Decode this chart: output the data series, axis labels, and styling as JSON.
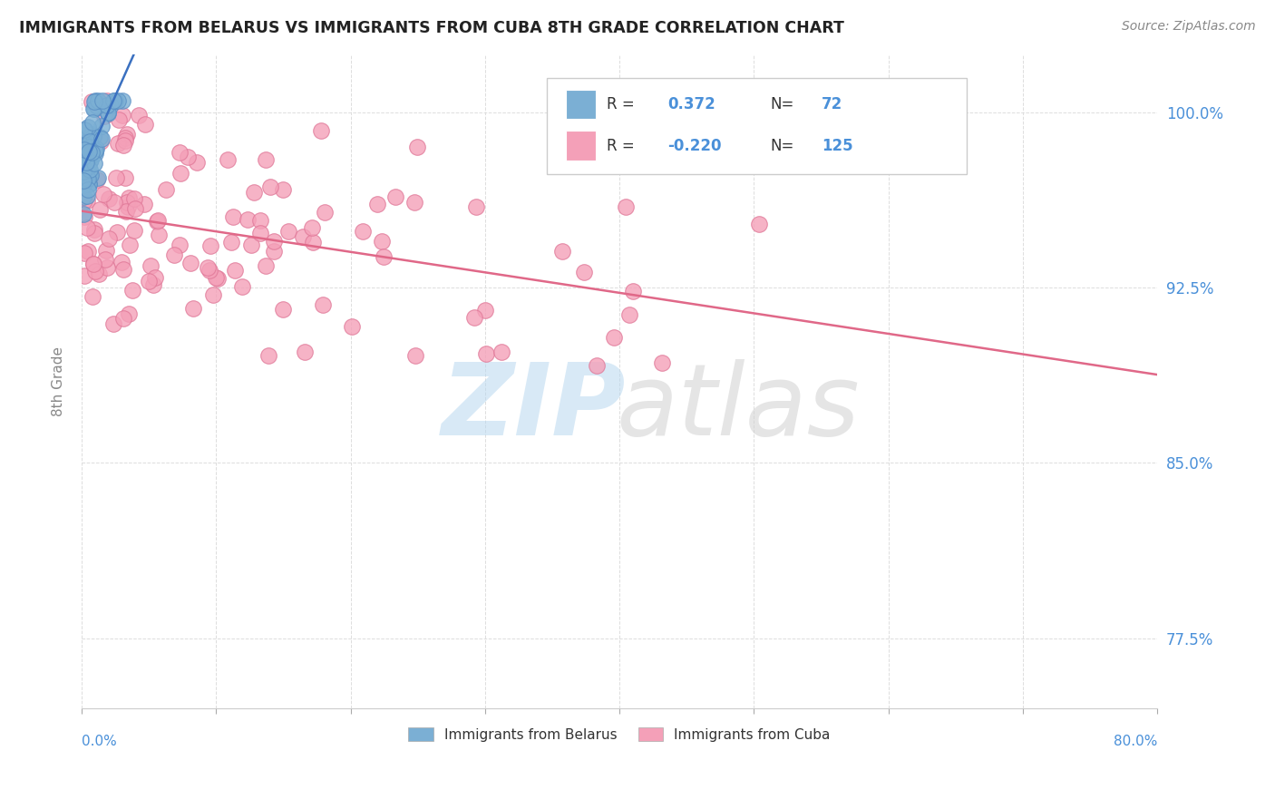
{
  "title": "IMMIGRANTS FROM BELARUS VS IMMIGRANTS FROM CUBA 8TH GRADE CORRELATION CHART",
  "source": "Source: ZipAtlas.com",
  "ylabel": "8th Grade",
  "ytick_labels": [
    "77.5%",
    "85.0%",
    "92.5%",
    "100.0%"
  ],
  "ytick_values": [
    0.775,
    0.85,
    0.925,
    1.0
  ],
  "xlim": [
    0.0,
    0.8
  ],
  "ylim": [
    0.745,
    1.025
  ],
  "background_color": "#ffffff",
  "grid_color": "#dddddd",
  "belarus_color": "#7bafd4",
  "belarus_edge": "#5a8fc4",
  "cuba_color": "#f4a0b8",
  "cuba_edge": "#e07898",
  "belarus_line_color": "#3a70c0",
  "cuba_line_color": "#e06888",
  "title_color": "#222222",
  "axis_label_color": "#4a90d9",
  "yticklabel_color": "#4a90d9",
  "R_belarus": 0.372,
  "N_belarus": 72,
  "R_cuba": -0.22,
  "N_cuba": 125,
  "legend_R_belarus": "0.372",
  "legend_N_belarus": "72",
  "legend_R_cuba": "-0.220",
  "legend_N_cuba": "125",
  "watermark_zip_color": "#b0d0f0",
  "watermark_atlas_color": "#c8c8c8"
}
